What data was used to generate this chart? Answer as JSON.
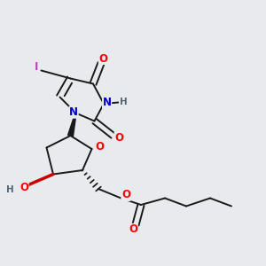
{
  "bg_color": "#e8eaed",
  "bond_color": "#1a1a1a",
  "bond_width": 1.4,
  "dbo": 0.012,
  "atom_colors": {
    "O": "#ff0000",
    "N": "#0000cc",
    "I": "#bb44bb",
    "H": "#556677",
    "C": "#1a1a1a"
  },
  "font_size": 8.5,
  "fig_size": [
    3.0,
    3.0
  ],
  "dpi": 100
}
